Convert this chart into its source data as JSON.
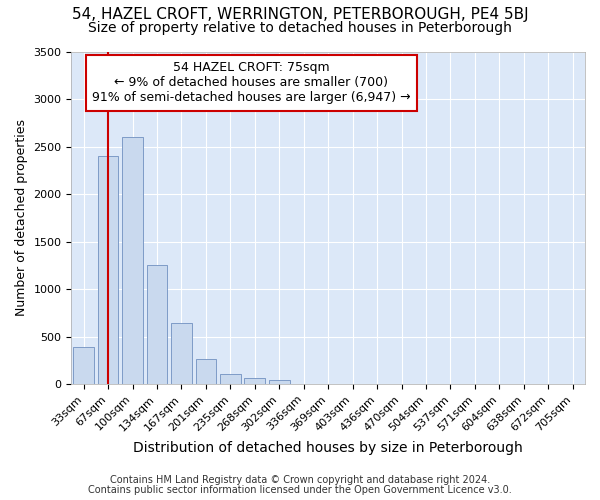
{
  "title1": "54, HAZEL CROFT, WERRINGTON, PETERBOROUGH, PE4 5BJ",
  "title2": "Size of property relative to detached houses in Peterborough",
  "xlabel": "Distribution of detached houses by size in Peterborough",
  "ylabel": "Number of detached properties",
  "footnote1": "Contains HM Land Registry data © Crown copyright and database right 2024.",
  "footnote2": "Contains public sector information licensed under the Open Government Licence v3.0.",
  "categories": [
    "33sqm",
    "67sqm",
    "100sqm",
    "134sqm",
    "167sqm",
    "201sqm",
    "235sqm",
    "268sqm",
    "302sqm",
    "336sqm",
    "369sqm",
    "403sqm",
    "436sqm",
    "470sqm",
    "504sqm",
    "537sqm",
    "571sqm",
    "604sqm",
    "638sqm",
    "672sqm",
    "705sqm"
  ],
  "values": [
    390,
    2400,
    2600,
    1250,
    640,
    260,
    110,
    60,
    40,
    0,
    0,
    0,
    0,
    0,
    0,
    0,
    0,
    0,
    0,
    0,
    0
  ],
  "bar_color": "#c9d9ee",
  "bar_edge_color": "#7090c0",
  "vline_x": 1,
  "vline_color": "#cc0000",
  "annotation_line1": "54 HAZEL CROFT: 75sqm",
  "annotation_line2": "← 9% of detached houses are smaller (700)",
  "annotation_line3": "91% of semi-detached houses are larger (6,947) →",
  "annotation_box_facecolor": "#ffffff",
  "annotation_box_edgecolor": "#cc0000",
  "ylim": [
    0,
    3500
  ],
  "yticks": [
    0,
    500,
    1000,
    1500,
    2000,
    2500,
    3000,
    3500
  ],
  "fig_bg_color": "#ffffff",
  "plot_bg_color": "#dce8f8",
  "grid_color": "#ffffff",
  "title1_fontsize": 11,
  "title2_fontsize": 10,
  "xlabel_fontsize": 10,
  "ylabel_fontsize": 9,
  "tick_fontsize": 8,
  "annot_fontsize": 9,
  "footnote_fontsize": 7
}
